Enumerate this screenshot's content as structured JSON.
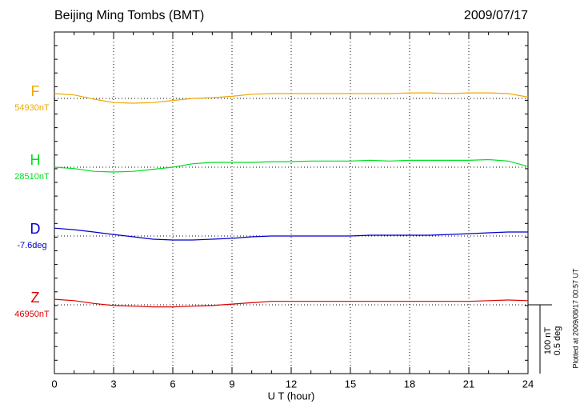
{
  "chart_data": {
    "type": "line",
    "title": "Beijing Ming Tombs (BMT)",
    "date": "2009/07/17",
    "x_label": "U T (hour)",
    "footnote": "Plotted at 2009/08/17 00:57 UT",
    "x": [
      0,
      1,
      2,
      3,
      4,
      5,
      6,
      7,
      8,
      9,
      10,
      11,
      12,
      13,
      14,
      15,
      16,
      17,
      18,
      19,
      20,
      21,
      22,
      23,
      24
    ],
    "xlim": [
      0,
      24
    ],
    "xticks": [
      0,
      3,
      6,
      9,
      12,
      15,
      18,
      21,
      24
    ],
    "grid": true,
    "scale_bar": [
      {
        "value": 100,
        "label": "100 nT"
      },
      {
        "value": 0.5,
        "label": "0.5 deg"
      }
    ],
    "series": [
      {
        "name": "F",
        "baseline_label": "54930nT",
        "color": "#f0a800",
        "values": [
          7,
          5,
          -1,
          -6,
          -7,
          -6,
          -3,
          0,
          1,
          3,
          6,
          7,
          7,
          7,
          7,
          7,
          7,
          7,
          8,
          8,
          7,
          8,
          8,
          7,
          2
        ]
      },
      {
        "name": "H",
        "baseline_label": "28510nT",
        "color": "#00dd22",
        "values": [
          0,
          -2,
          -6,
          -7,
          -6,
          -3,
          0,
          5,
          7,
          7,
          7,
          8,
          8,
          9,
          9,
          9,
          10,
          9,
          10,
          10,
          10,
          10,
          11,
          9,
          1
        ]
      },
      {
        "name": "D",
        "baseline_label": "-7.6deg",
        "color": "#0000cc",
        "axis": "y2",
        "values": [
          0.057,
          0.046,
          0.029,
          0.011,
          -0.006,
          -0.023,
          -0.029,
          -0.029,
          -0.023,
          -0.017,
          -0.006,
          0,
          0,
          0,
          0,
          0,
          0.006,
          0.006,
          0.006,
          0.006,
          0.011,
          0.017,
          0.023,
          0.029,
          0.029
        ]
      },
      {
        "name": "Z",
        "baseline_label": "46950nT",
        "color": "#dd0000",
        "values": [
          8,
          6,
          2,
          -1,
          -2,
          -3,
          -3,
          -2,
          -1,
          1,
          3,
          5,
          5,
          5,
          5,
          5,
          5,
          5,
          5,
          5,
          5,
          5,
          6,
          7,
          6
        ]
      }
    ]
  }
}
